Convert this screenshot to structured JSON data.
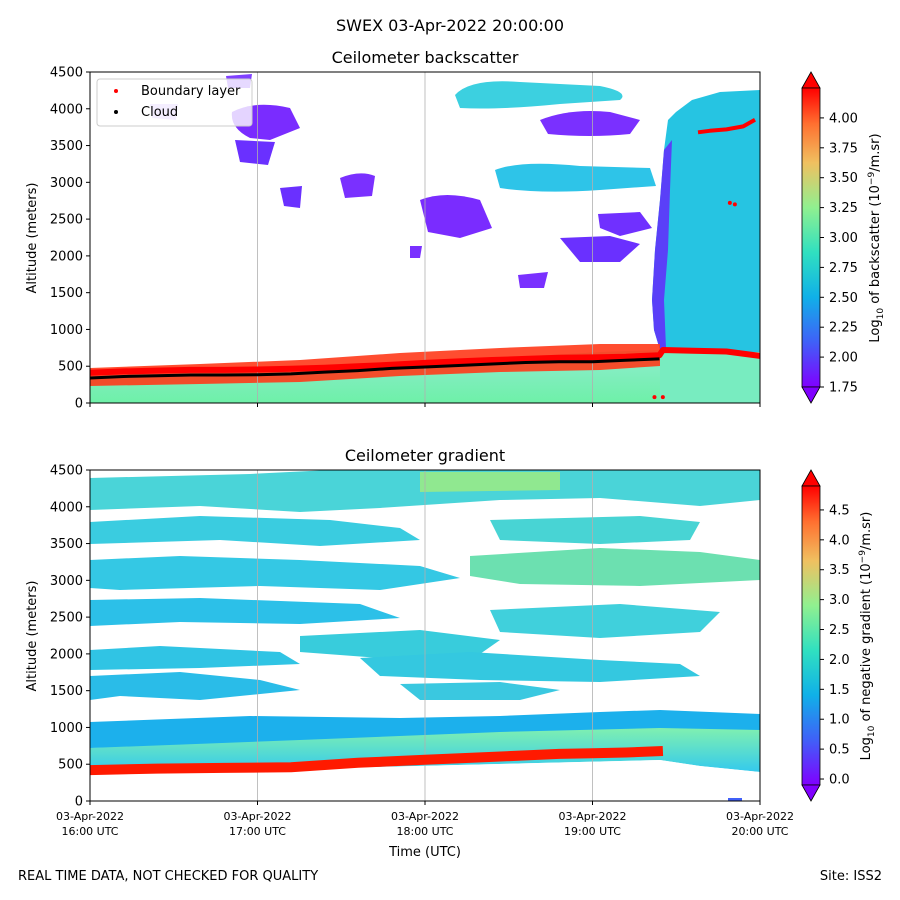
{
  "suptitle": "SWEX 03-Apr-2022 20:00:00",
  "footer": {
    "left": "REAL TIME DATA, NOT CHECKED FOR QUALITY",
    "right": "Site: ISS2"
  },
  "xaxis": {
    "label": "Time (UTC)",
    "ticks": [
      {
        "date": "03-Apr-2022",
        "time": "16:00 UTC",
        "hour": 16
      },
      {
        "date": "03-Apr-2022",
        "time": "17:00 UTC",
        "hour": 17
      },
      {
        "date": "03-Apr-2022",
        "time": "18:00 UTC",
        "hour": 18
      },
      {
        "date": "03-Apr-2022",
        "time": "19:00 UTC",
        "hour": 19
      },
      {
        "date": "03-Apr-2022",
        "time": "20:00 UTC",
        "hour": 20
      }
    ],
    "range": [
      16,
      20
    ]
  },
  "chart_data": [
    {
      "type": "heatmap",
      "title": "Ceilometer backscatter",
      "xlabel": "Time (UTC)",
      "ylabel": "Altitude (meters)",
      "ylim": [
        0,
        4500
      ],
      "yticks": [
        0,
        500,
        1000,
        1500,
        2000,
        2500,
        3000,
        3500,
        4000,
        4500
      ],
      "colorbar": {
        "label_pre": "Log",
        "label_sub": "10",
        "label_mid": " of backscatter (10",
        "label_sup": "−9",
        "label_post": "/m.sr)",
        "range": [
          1.75,
          4.25
        ],
        "ticks": [
          "1.75",
          "2.00",
          "2.25",
          "2.50",
          "2.75",
          "3.00",
          "3.25",
          "3.50",
          "3.75",
          "4.00"
        ],
        "extend": "both"
      },
      "legend": {
        "location": "upper-left",
        "entries": [
          {
            "label": "Boundary layer",
            "color": "#ff0000"
          },
          {
            "label": "Cloud",
            "color": "#000000"
          }
        ]
      },
      "boundary_layer_series": {
        "name": "Boundary layer",
        "x_hours": [
          16.0,
          16.2,
          16.4,
          16.6,
          16.8,
          17.0,
          17.2,
          17.4,
          17.6,
          17.8,
          18.0,
          18.2,
          18.4,
          18.6,
          18.8,
          19.0,
          19.2,
          19.4,
          19.42,
          19.6,
          19.8,
          20.0
        ],
        "y_meters": [
          410,
          430,
          440,
          450,
          450,
          455,
          465,
          480,
          500,
          520,
          545,
          565,
          585,
          600,
          615,
          620,
          630,
          650,
          720,
          710,
          700,
          640
        ]
      },
      "upper_boundary_layer_series": {
        "name": "Boundary layer (upper)",
        "x_hours": [
          19.63,
          19.7,
          19.8,
          19.9,
          19.97
        ],
        "y_meters": [
          3680,
          3700,
          3720,
          3760,
          3850
        ]
      },
      "boundary_layer_points": {
        "x_hours": [
          19.37,
          19.42,
          19.82,
          19.85
        ],
        "y_meters": [
          80,
          80,
          2720,
          2700
        ]
      },
      "cloud_series": {
        "name": "Cloud",
        "x_hours": [
          16.0,
          16.2,
          16.4,
          16.6,
          16.8,
          17.0,
          17.2,
          17.4,
          17.6,
          17.8,
          18.0,
          18.2,
          18.4,
          18.6,
          18.8,
          19.0,
          19.2,
          19.4
        ],
        "y_meters": [
          340,
          360,
          370,
          380,
          380,
          385,
          395,
          420,
          440,
          470,
          490,
          510,
          530,
          550,
          560,
          560,
          580,
          600
        ]
      }
    },
    {
      "type": "heatmap",
      "title": "Ceilometer gradient",
      "xlabel": "Time (UTC)",
      "ylabel": "Altitude (meters)",
      "ylim": [
        0,
        4500
      ],
      "yticks": [
        0,
        500,
        1000,
        1500,
        2000,
        2500,
        3000,
        3500,
        4000,
        4500
      ],
      "colorbar": {
        "label_pre": "Log",
        "label_sub": "10",
        "label_mid": " of negative gradient (10",
        "label_sup": "−9",
        "label_post": "/m.sr)",
        "range": [
          -0.1,
          4.9
        ],
        "ticks": [
          "0.0",
          "0.5",
          "1.0",
          "1.5",
          "2.0",
          "2.5",
          "3.0",
          "3.5",
          "4.0",
          "4.5"
        ],
        "extend": "both"
      },
      "red_layer_series": {
        "x_hours": [
          16.0,
          16.4,
          16.8,
          17.2,
          17.6,
          18.0,
          18.4,
          18.8,
          19.0,
          19.2,
          19.42
        ],
        "y_meters": [
          420,
          440,
          450,
          460,
          520,
          560,
          600,
          640,
          650,
          660,
          680
        ]
      }
    }
  ]
}
